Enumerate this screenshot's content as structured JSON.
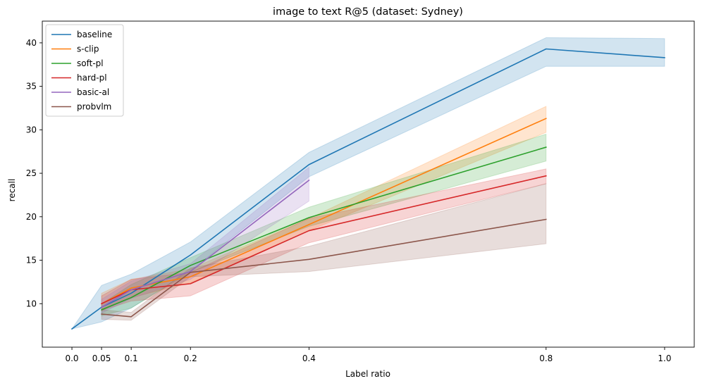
{
  "chart_data": {
    "type": "line",
    "title": "image to text R@5 (dataset: Sydney)",
    "xlabel": "Label ratio",
    "ylabel": "recall",
    "xlim": [
      -0.05,
      1.05
    ],
    "ylim": [
      5,
      42.5
    ],
    "x_ticks": [
      0.0,
      0.05,
      0.1,
      0.2,
      0.4,
      0.8,
      1.0
    ],
    "x_tick_labels": [
      "0.0",
      "0.05",
      "0.1",
      "0.2",
      "0.4",
      "0.8",
      "1.0"
    ],
    "y_ticks": [
      10,
      15,
      20,
      25,
      30,
      35,
      40
    ],
    "y_tick_labels": [
      "10",
      "15",
      "20",
      "25",
      "30",
      "35",
      "40"
    ],
    "grid": false,
    "legend_position": "top-left",
    "series": [
      {
        "name": "baseline",
        "color": "#1f77b4",
        "x": [
          0.0,
          0.05,
          0.1,
          0.2,
          0.4,
          0.8,
          1.0
        ],
        "y": [
          7.1,
          9.6,
          11.2,
          15.6,
          26.0,
          39.3,
          38.3
        ],
        "lower": [
          7.1,
          7.9,
          9.5,
          13.8,
          24.6,
          37.3,
          37.3
        ],
        "upper": [
          7.1,
          12.1,
          13.4,
          17.1,
          27.4,
          40.6,
          40.5
        ]
      },
      {
        "name": "s-clip",
        "color": "#ff7f0e",
        "x": [
          0.05,
          0.1,
          0.2,
          0.4,
          0.8
        ],
        "y": [
          10.0,
          11.8,
          13.1,
          19.1,
          31.3
        ],
        "lower": [
          9.2,
          10.7,
          12.4,
          18.4,
          29.7
        ],
        "upper": [
          11.2,
          12.8,
          14.0,
          19.8,
          32.7
        ]
      },
      {
        "name": "soft-pl",
        "color": "#2ca02c",
        "x": [
          0.05,
          0.1,
          0.2,
          0.4,
          0.8
        ],
        "y": [
          9.3,
          10.7,
          14.4,
          19.9,
          28.0
        ],
        "lower": [
          8.6,
          9.5,
          13.6,
          18.9,
          26.4
        ],
        "upper": [
          10.0,
          12.2,
          15.3,
          21.1,
          29.5
        ]
      },
      {
        "name": "hard-pl",
        "color": "#d62728",
        "x": [
          0.05,
          0.1,
          0.2,
          0.4,
          0.8
        ],
        "y": [
          10.0,
          11.6,
          12.3,
          18.4,
          24.7
        ],
        "lower": [
          9.2,
          10.3,
          10.9,
          17.0,
          23.8
        ],
        "upper": [
          10.9,
          12.8,
          13.6,
          19.8,
          25.5
        ]
      },
      {
        "name": "basic-al",
        "color": "#9467bd",
        "x": [
          0.05,
          0.1,
          0.2,
          0.4
        ],
        "y": [
          9.6,
          11.6,
          13.7,
          24.2
        ],
        "lower": [
          8.9,
          10.6,
          12.8,
          21.8
        ],
        "upper": [
          10.5,
          12.6,
          14.6,
          25.7
        ]
      },
      {
        "name": "probvlm",
        "color": "#8c564b",
        "x": [
          0.05,
          0.1,
          0.2,
          0.4,
          0.8
        ],
        "y": [
          8.8,
          8.5,
          13.6,
          15.1,
          19.7
        ],
        "lower": [
          8.2,
          8.1,
          13.1,
          13.7,
          16.9
        ],
        "upper": [
          9.3,
          9.0,
          14.1,
          16.6,
          23.8
        ]
      }
    ]
  }
}
